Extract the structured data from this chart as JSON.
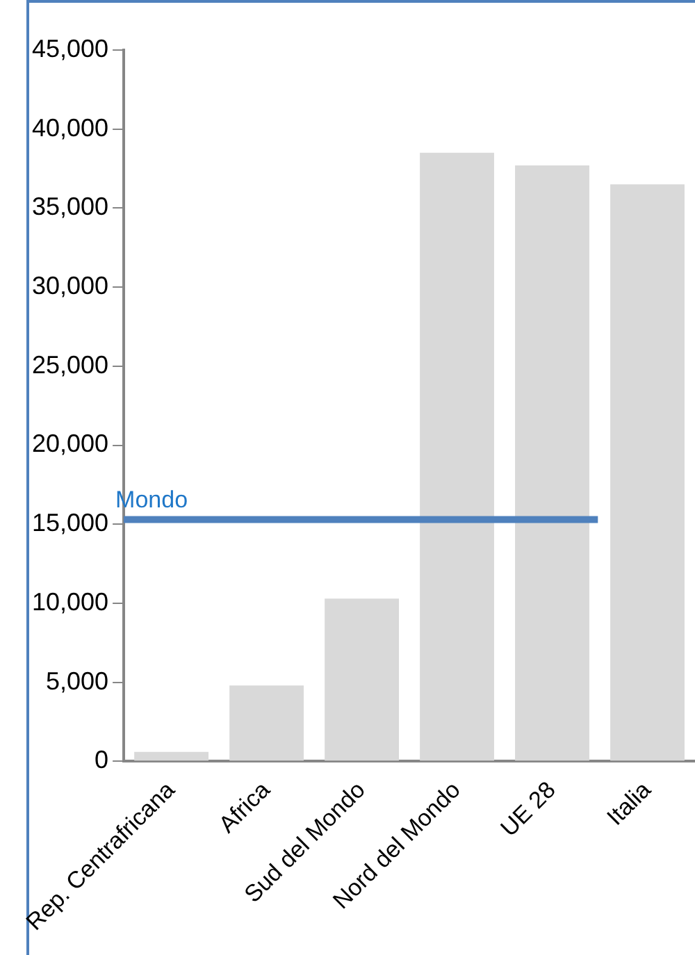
{
  "chart_data": {
    "type": "bar",
    "categories": [
      "Rep. Centrafricana",
      "Africa",
      "Sud del Mondo",
      "Nord del Mondo",
      "UE 28",
      "Italia"
    ],
    "values": [
      600,
      4800,
      10300,
      38500,
      37700,
      36500
    ],
    "color": "#d9d9d9",
    "ylim": [
      0,
      45000
    ],
    "yticks": [
      {
        "value": 0,
        "label": "0"
      },
      {
        "value": 5000,
        "label": "5,000"
      },
      {
        "value": 10000,
        "label": "10,000"
      },
      {
        "value": 15000,
        "label": "15,000"
      },
      {
        "value": 20000,
        "label": "20,000"
      },
      {
        "value": 25000,
        "label": "25,000"
      },
      {
        "value": 30000,
        "label": "30,000"
      },
      {
        "value": 35000,
        "label": "35,000"
      },
      {
        "value": 40000,
        "label": "40,000"
      },
      {
        "value": 45000,
        "label": "45,000"
      }
    ],
    "grid": false,
    "legend": false,
    "ref_lines": [
      {
        "axis": "y",
        "value": 15300,
        "label": "Mondo",
        "color": "#4f81bd"
      }
    ]
  }
}
